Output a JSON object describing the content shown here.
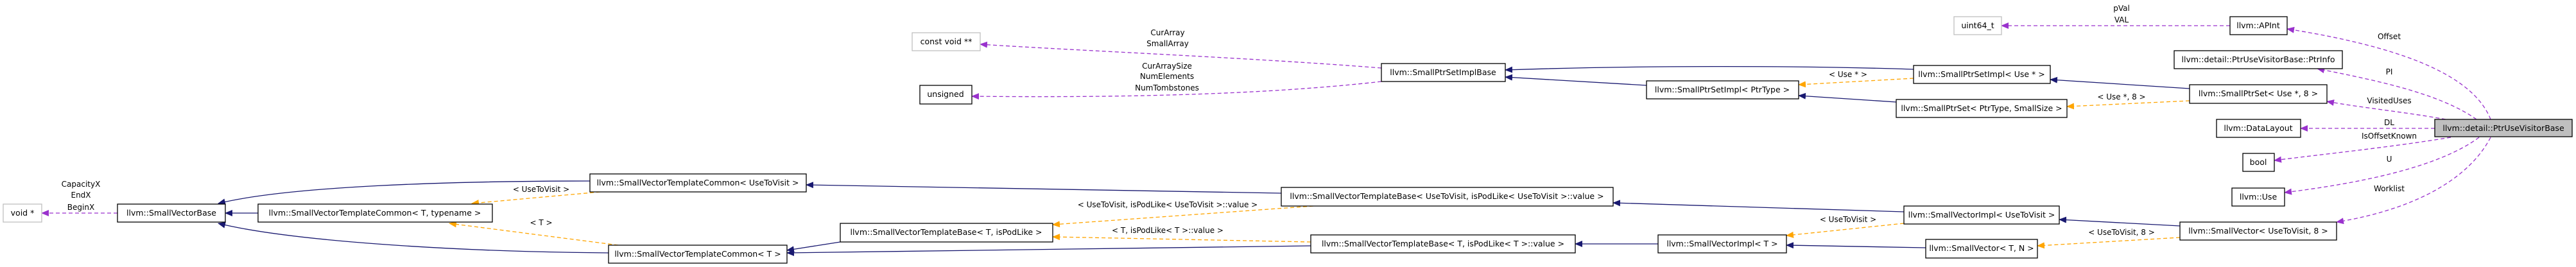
{
  "colors": {
    "inheritance": "#191970",
    "template": "#ffa500",
    "usage": "#9a32cd",
    "highlight_fill": "#bfbfbf"
  },
  "nodes": {
    "void_ptr": "void *",
    "small_vector_base": "llvm::SmallVectorBase",
    "svtc_t_typename": "llvm::SmallVectorTemplateCommon< T, typename >",
    "svtc_usetovisit": "llvm::SmallVectorTemplateCommon< UseToVisit >",
    "svtc_t": "llvm::SmallVectorTemplateCommon< T >",
    "const_void_pp": "const void **",
    "unsigned": "unsigned",
    "svtb_t_ispodlike": "llvm::SmallVectorTemplateBase< T, isPodLike >",
    "svtb_usetovisit": "llvm::SmallVectorTemplateBase< UseToVisit, isPodLike< UseToVisit >::value >",
    "small_ptr_set_impl_base": "llvm::SmallPtrSetImplBase",
    "small_ptr_set_impl_ptrtype": "llvm::SmallPtrSetImpl< PtrType >",
    "small_ptr_set_impl_use": "llvm::SmallPtrSetImpl< Use * >",
    "small_ptr_set_ptrtype_smallsize": "llvm::SmallPtrSet< PtrType, SmallSize >",
    "svtb_t_value": "llvm::SmallVectorTemplateBase< T, isPodLike< T >::value >",
    "small_vector_impl_t": "llvm::SmallVectorImpl< T >",
    "small_vector_impl_usetovisit": "llvm::SmallVectorImpl< UseToVisit >",
    "small_vector_t_n": "llvm::SmallVector< T, N >",
    "uint64_t": "uint64_t",
    "apint": "llvm::APInt",
    "ptr_info": "llvm::detail::PtrUseVisitorBase::PtrInfo",
    "small_ptr_set_use_8": "llvm::SmallPtrSet< Use *, 8 >",
    "data_layout": "llvm::DataLayout",
    "ptr_use_visitor_base": "llvm::detail::PtrUseVisitorBase",
    "bool": "bool",
    "use": "llvm::Use",
    "small_vector_usetovisit_8": "llvm::SmallVector< UseToVisit, 8 >"
  },
  "edge_labels": {
    "capacity_x": "CapacityX",
    "end_x": "EndX",
    "begin_x": "BeginX",
    "cur_array": "CurArray",
    "small_array": "SmallArray",
    "cur_array_size": "CurArraySize",
    "num_elements": "NumElements",
    "num_tombstones": "NumTombstones",
    "tpl_usetovisit_1": "< UseToVisit >",
    "tpl_t": "< T >",
    "tpl_usetovisit_podlike": "< UseToVisit, isPodLike< UseToVisit >::value >",
    "tpl_t_podlike": "< T, isPodLike< T >::value >",
    "tpl_use_ptr": "< Use * >",
    "tpl_usetovisit_2": "< UseToVisit >",
    "p_val": "pVal",
    "val": "VAL",
    "offset": "Offset",
    "pi": "PI",
    "visited_uses": "VisitedUses",
    "dl": "DL",
    "is_offset_known": "IsOffsetKnown",
    "u": "U",
    "worklist": "Worklist",
    "tpl_use_ptr_8": "< Use *, 8 >",
    "tpl_usetovisit_8": "< UseToVisit, 8 >"
  }
}
